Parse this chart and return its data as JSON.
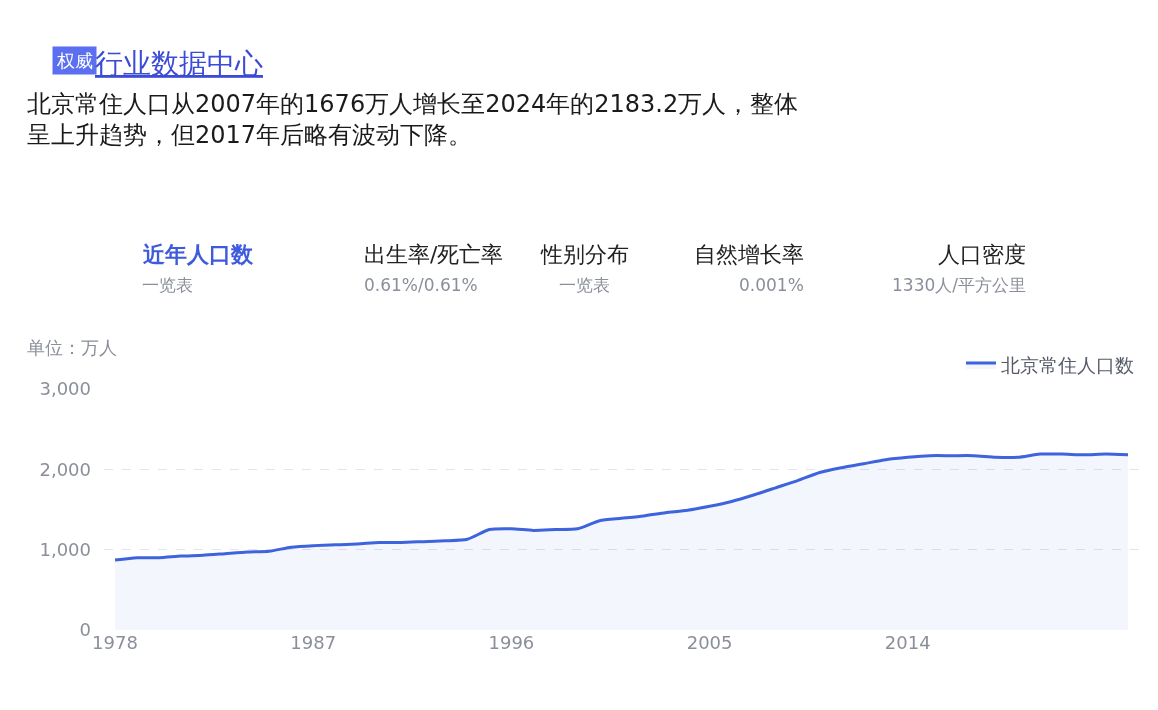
{
  "chart_data": {
    "type": "area",
    "title": "北京常住人口从2007年的1676万人增长至2024年的2183.2万人，整体呈上升趋势，但2017年后略有波动下降。",
    "ylabel": "单位：万人",
    "annotations": [
      "权威",
      "行业数据中心",
      "近年人口数",
      "一览表",
      "出生率/死亡率",
      "0.61%/0.61%",
      "性别分布",
      "一览表",
      "自然增长率",
      "0.001%",
      "人口密度",
      "1330人/平方公里"
    ],
    "categories": [
      "1978",
      null,
      null,
      null,
      null,
      null,
      null,
      null,
      null,
      "1987",
      null,
      null,
      null,
      null,
      null,
      null,
      null,
      null,
      "1996",
      null,
      null,
      null,
      null,
      null,
      null,
      null,
      null,
      "2005",
      null,
      null,
      null,
      null,
      null,
      null,
      null,
      null,
      "2014",
      null,
      null,
      null,
      null,
      null,
      null,
      null,
      null,
      null,
      null
    ],
    "series": [
      {
        "name": "北京常住人口数",
        "color": "#3d63dd",
        "values": [
          870,
          900,
          900,
          920,
          930,
          950,
          970,
          980,
          1030,
          1050,
          1060,
          1070,
          1090,
          1090,
          1100,
          1110,
          1130,
          1250,
          1260,
          1240,
          1250,
          1260,
          1360,
          1390,
          1420,
          1460,
          1490,
          1540,
          1600,
          1680,
          1770,
          1860,
          1960,
          2020,
          2070,
          2120,
          2150,
          2170,
          2170,
          2170,
          2150,
          2150,
          2190,
          2190,
          2180,
          2190,
          2180
        ]
      }
    ],
    "ylim": [
      0,
      3000
    ],
    "yticks": [
      0,
      {
        "value": 1000,
        "label": "1,000"
      },
      {
        "value": 2000,
        "label": "2,000"
      },
      {
        "value": 3000,
        "label": "3,000"
      }
    ],
    "grid": "y",
    "legend": "top right",
    "marker": "none",
    "line_style": "solid"
  }
}
